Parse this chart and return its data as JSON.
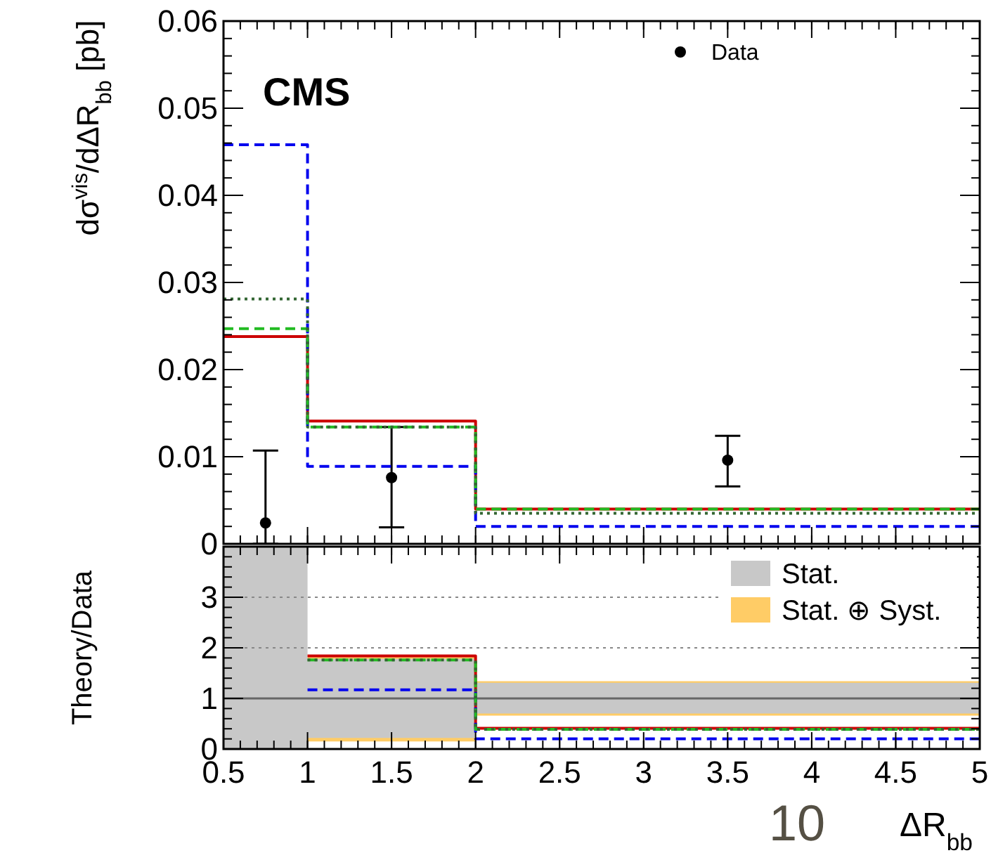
{
  "chart_data": [
    {
      "type": "step",
      "ylabel": "dσ$^{vis}$/dΔR$_{bb}$ [pb]",
      "xlim": [
        0.5,
        5
      ],
      "ylim": [
        0,
        0.06
      ],
      "yticks": [
        0,
        0.01,
        0.02,
        0.03,
        0.04,
        0.05,
        0.06
      ],
      "tick_labels": "y",
      "legend": "top right",
      "annotations": [
        "CMS"
      ],
      "series": [
        {
          "name": "Data",
          "type": "scatter",
          "color": "#000000",
          "marker": "circle",
          "x": [
            0.75,
            1.5,
            3.5
          ],
          "values": [
            0.0024,
            0.0076,
            0.0096
          ],
          "errors": [
            [
              0,
              0.0107
            ],
            [
              0.0019,
              0.0134
            ],
            [
              0.0066,
              0.0124
            ]
          ]
        },
        {
          "color": "#cc0000",
          "line_style": "solid",
          "x": [
            0.5,
            1,
            2,
            5
          ],
          "values": [
            0.0238,
            0.0141,
            0.004,
            0.004
          ]
        },
        {
          "color": "#0000ee",
          "line_style": "dashed",
          "x": [
            0.5,
            1,
            2,
            5
          ],
          "values": [
            0.0458,
            0.0089,
            0.002,
            0.002
          ]
        },
        {
          "color": "#22bb22",
          "line_style": "dashed",
          "x": [
            0.5,
            1,
            2,
            5
          ],
          "values": [
            0.0247,
            0.0134,
            0.004,
            0.004
          ]
        },
        {
          "color": "#336633",
          "line_style": "dotted",
          "x": [
            0.5,
            1,
            2,
            5
          ],
          "values": [
            0.0281,
            0.0134,
            0.0035,
            0.0035
          ]
        }
      ]
    },
    {
      "type": "step",
      "ylabel": "Theory/Data",
      "xlabel": "ΔR$_{bb}$",
      "xlim": [
        0.5,
        5
      ],
      "ylim": [
        0,
        4
      ],
      "xticks": [
        0.5,
        1,
        1.5,
        2,
        2.5,
        3,
        3.5,
        4,
        4.5,
        5
      ],
      "yticks": [
        0,
        1,
        2,
        3
      ],
      "legend": "top right",
      "annotations": [
        "10"
      ],
      "ref_lines": [
        {
          "axis": "y",
          "value": 1,
          "color": "#666666",
          "line_style": "solid"
        },
        {
          "axis": "y",
          "value": 2,
          "color": "#888888",
          "line_style": "dotted"
        },
        {
          "axis": "y",
          "value": 3,
          "color": "#888888",
          "line_style": "dotted"
        }
      ],
      "series": [
        {
          "name": "Stat.",
          "type": "line",
          "color": "#c8c8c8",
          "x": [
            0.5,
            1,
            1,
            2,
            2,
            5
          ],
          "values": [
            null,
            null,
            null,
            null,
            null,
            null
          ],
          "lower": [
            0,
            0,
            0.22,
            0.22,
            0.7,
            0.7
          ],
          "upper": [
            4,
            4,
            1.78,
            1.78,
            1.31,
            1.31
          ]
        },
        {
          "name": "Stat. ⊕ Syst.",
          "type": "line",
          "color": "#ffcc66",
          "x": [
            1,
            2,
            2,
            5
          ],
          "values": [
            null,
            null,
            null,
            null
          ],
          "lower": [
            0.15,
            0.15,
            0.66,
            0.66
          ],
          "upper": [
            1.85,
            1.85,
            1.34,
            1.34
          ]
        },
        {
          "color": "#cc0000",
          "line_style": "solid",
          "x": [
            1,
            2,
            5
          ],
          "values": [
            1.84,
            0.41,
            0.41
          ]
        },
        {
          "color": "#0000ee",
          "line_style": "dashed",
          "x": [
            1,
            2,
            5
          ],
          "values": [
            1.17,
            0.2,
            0.2
          ]
        },
        {
          "color": "#22bb22",
          "line_style": "dashed",
          "x": [
            1,
            2,
            5
          ],
          "values": [
            1.76,
            0.39,
            0.39
          ]
        },
        {
          "color": "#336633",
          "line_style": "dotted",
          "x": [
            1,
            2,
            5
          ],
          "values": [
            1.76,
            0.39,
            0.39
          ]
        }
      ]
    }
  ]
}
